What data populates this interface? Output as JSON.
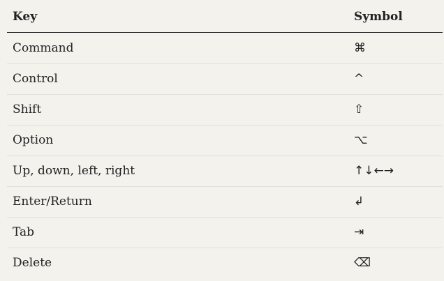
{
  "table": {
    "header": {
      "key": "Key",
      "symbol": "Symbol"
    },
    "rows": [
      {
        "key": "Command",
        "symbol": "⌘"
      },
      {
        "key": "Control",
        "symbol": "^"
      },
      {
        "key": "Shift",
        "symbol": "⇧"
      },
      {
        "key": "Option",
        "symbol": "⌥"
      },
      {
        "key": "Up, down, left, right",
        "symbol": "↑↓←→"
      },
      {
        "key": "Enter/Return",
        "symbol": "↲"
      },
      {
        "key": "Tab",
        "symbol": "⇥"
      },
      {
        "key": "Delete",
        "symbol": "⌫"
      }
    ]
  }
}
